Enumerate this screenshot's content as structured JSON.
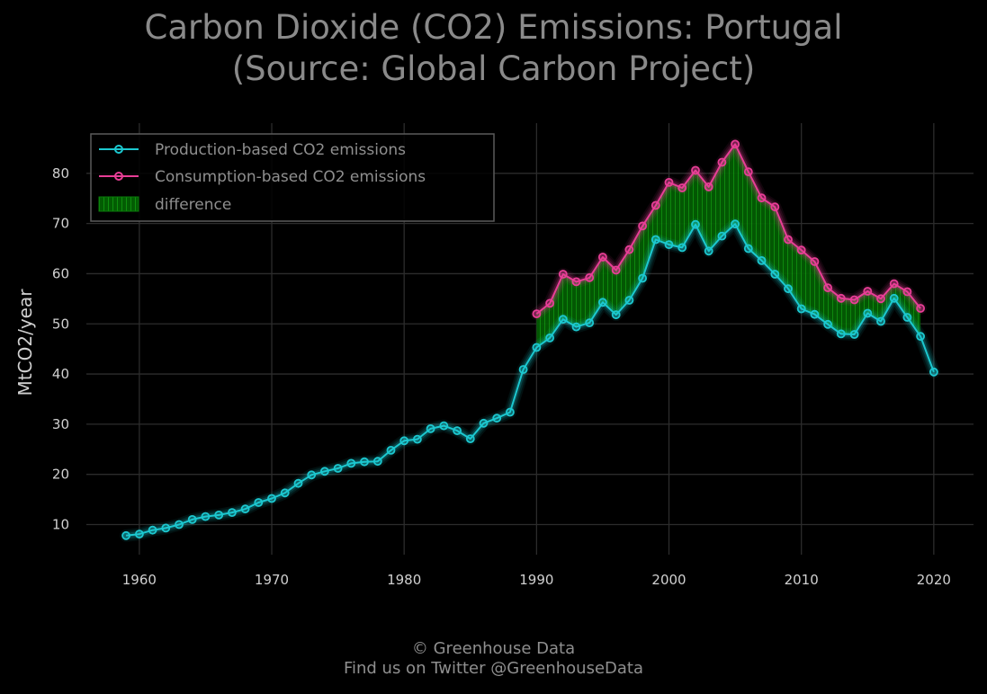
{
  "chart_data": {
    "type": "line",
    "title_lines": [
      "Carbon Dioxide (CO2) Emissions: Portugal",
      "(Source: Global Carbon Project)"
    ],
    "xlabel": "",
    "ylabel": "MtCO2/year",
    "xlim": [
      1956,
      2023
    ],
    "ylim": [
      4,
      90
    ],
    "x_ticks": [
      "1960",
      "1970",
      "1980",
      "1990",
      "2000",
      "2010",
      "2020"
    ],
    "y_ticks": [
      "10",
      "20",
      "30",
      "40",
      "50",
      "60",
      "70",
      "80"
    ],
    "grid": true,
    "legend_position": "top-left",
    "fill_label": "difference",
    "series": [
      {
        "name": "Production-based CO2 emissions",
        "color": "#1cc8d0",
        "x": [
          1959,
          1960,
          1961,
          1962,
          1963,
          1964,
          1965,
          1966,
          1967,
          1968,
          1969,
          1970,
          1971,
          1972,
          1973,
          1974,
          1975,
          1976,
          1977,
          1978,
          1979,
          1980,
          1981,
          1982,
          1983,
          1984,
          1985,
          1986,
          1987,
          1988,
          1989,
          1990,
          1991,
          1992,
          1993,
          1994,
          1995,
          1996,
          1997,
          1998,
          1999,
          2000,
          2001,
          2002,
          2003,
          2004,
          2005,
          2006,
          2007,
          2008,
          2009,
          2010,
          2011,
          2012,
          2013,
          2014,
          2015,
          2016,
          2017,
          2018,
          2019,
          2020
        ],
        "values": [
          7.8,
          8.1,
          8.9,
          9.3,
          10.0,
          11.0,
          11.6,
          11.9,
          12.4,
          13.1,
          14.4,
          15.2,
          16.3,
          18.2,
          19.9,
          20.6,
          21.2,
          22.2,
          22.5,
          22.6,
          24.8,
          26.7,
          27.0,
          29.1,
          29.7,
          28.7,
          27.1,
          30.2,
          31.2,
          32.4,
          40.9,
          45.3,
          47.2,
          50.9,
          49.4,
          50.2,
          54.3,
          51.8,
          54.7,
          59.1,
          66.8,
          65.8,
          65.2,
          69.8,
          64.5,
          67.5,
          69.9,
          65.0,
          62.6,
          59.9,
          57.0,
          53.0,
          51.9,
          49.9,
          48.0,
          47.9,
          52.1,
          50.5,
          55.1,
          51.3,
          47.5,
          40.4
        ]
      },
      {
        "name": "Consumption-based CO2 emissions",
        "color": "#e83e96",
        "x": [
          1990,
          1991,
          1992,
          1993,
          1994,
          1995,
          1996,
          1997,
          1998,
          1999,
          2000,
          2001,
          2002,
          2003,
          2004,
          2005,
          2006,
          2007,
          2008,
          2009,
          2010,
          2011,
          2012,
          2013,
          2014,
          2015,
          2016,
          2017,
          2018,
          2019
        ],
        "values": [
          52.0,
          54.1,
          59.9,
          58.4,
          59.2,
          63.3,
          60.7,
          64.8,
          69.5,
          73.6,
          78.2,
          77.1,
          80.6,
          77.3,
          82.2,
          85.8,
          80.3,
          75.1,
          73.3,
          66.8,
          64.7,
          62.4,
          57.2,
          55.1,
          54.8,
          56.5,
          55.0,
          58.0,
          56.4,
          53.1
        ]
      }
    ]
  },
  "footer": {
    "line1": "© Greenhouse Data",
    "line2": "Find us on Twitter @GreenhouseData"
  }
}
